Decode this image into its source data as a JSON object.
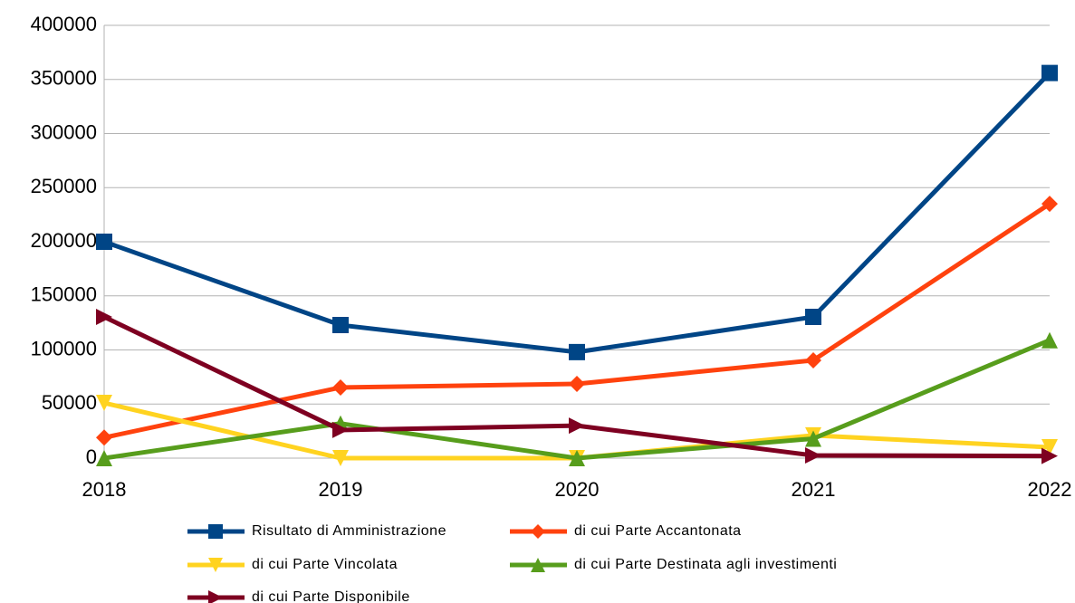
{
  "chart_data": {
    "type": "line",
    "categories": [
      "2018",
      "2019",
      "2020",
      "2021",
      "2022"
    ],
    "series": [
      {
        "name": "Risultato di Amministrazione",
        "color": "#004586",
        "marker": "square",
        "values": [
          200000,
          123000,
          98000,
          130500,
          356000
        ]
      },
      {
        "name": "di cui Parte Accantonata",
        "color": "#ff420e",
        "marker": "diamond",
        "values": [
          19000,
          65300,
          68600,
          90400,
          235000
        ]
      },
      {
        "name": "di cui Parte Vincolata",
        "color": "#ffd320",
        "marker": "triangle-down",
        "values": [
          51000,
          0,
          0,
          21000,
          10000
        ]
      },
      {
        "name": "di cui Parte Destinata agli investimenti",
        "color": "#579d1c",
        "marker": "triangle-up",
        "values": [
          0,
          32000,
          0,
          18000,
          109000
        ]
      },
      {
        "name": "di cui Parte Disponibile",
        "color": "#7e0021",
        "marker": "triangle-right",
        "values": [
          130500,
          26000,
          30000,
          2500,
          2000
        ]
      }
    ],
    "ylim": [
      0,
      400000
    ],
    "yticks": [
      0,
      50000,
      100000,
      150000,
      200000,
      250000,
      300000,
      350000,
      400000
    ],
    "grid": true,
    "legend": "bottom"
  }
}
